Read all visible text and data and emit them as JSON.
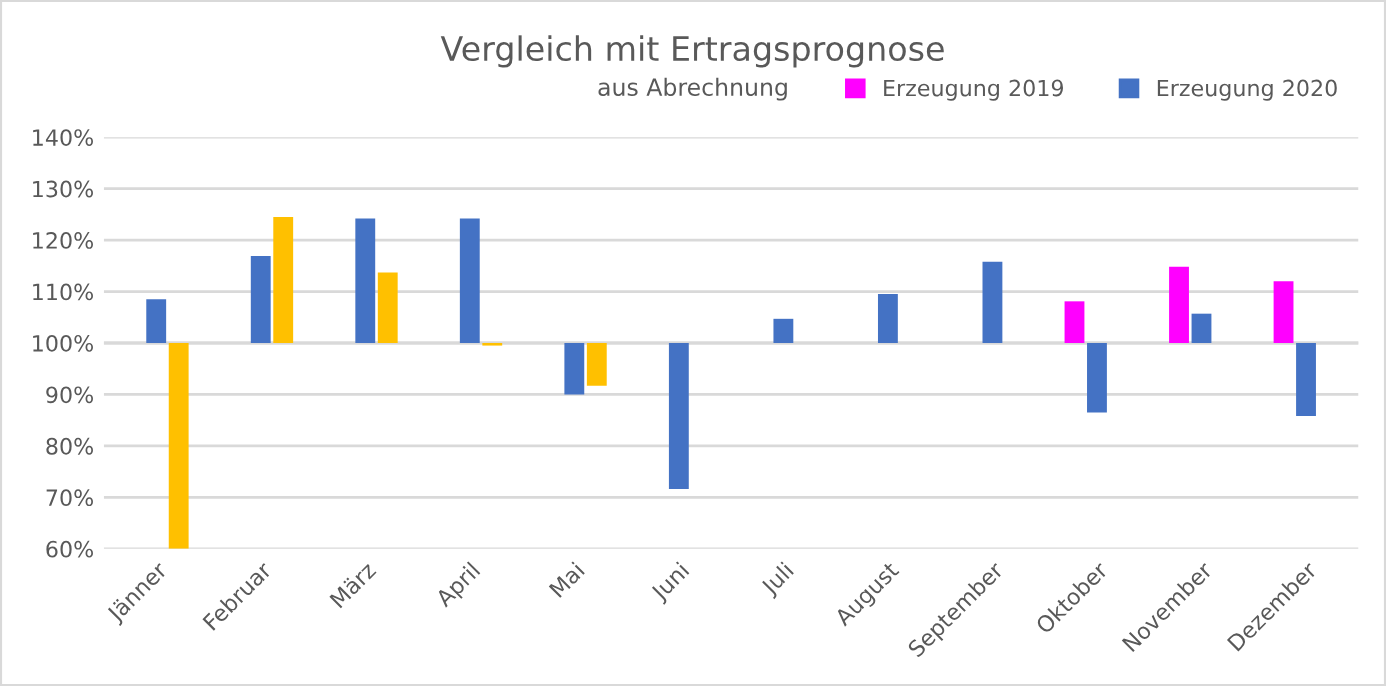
{
  "chart_data": {
    "type": "bar",
    "title": "Vergleich mit Ertragsprognose",
    "subtitle": "aus Abrechnung",
    "categories": [
      "Jänner",
      "Februar",
      "März",
      "April",
      "Mai",
      "Juni",
      "Juli",
      "August",
      "September",
      "Oktober",
      "November",
      "Dezember"
    ],
    "series": [
      {
        "name": "Erzeugung 2019",
        "color": "#ff00ff",
        "base": [
          null,
          null,
          null,
          null,
          null,
          null,
          null,
          null,
          null,
          100,
          100,
          100
        ],
        "values": [
          null,
          null,
          null,
          null,
          null,
          null,
          null,
          null,
          null,
          8.1,
          14.8,
          12.0
        ]
      },
      {
        "name": "Erzeugung 2020",
        "color": "#4472c4",
        "base": [
          100,
          100,
          100,
          100,
          100,
          100,
          100,
          100,
          100,
          100,
          100,
          100
        ],
        "values": [
          8.5,
          16.9,
          24.2,
          24.2,
          -10.0,
          -28.4,
          4.7,
          9.5,
          15.8,
          -13.5,
          5.7,
          -14.2
        ]
      },
      {
        "color": "#ffc000",
        "base": [
          100,
          100,
          100,
          100,
          100,
          null,
          null,
          null,
          null,
          null,
          null,
          null
        ],
        "values": [
          -40.0,
          24.5,
          13.7,
          -0.5,
          -8.3,
          null,
          null,
          null,
          null,
          null,
          null,
          null
        ]
      }
    ],
    "ylim": [
      60,
      140
    ],
    "yticks": [
      {
        "value": 60,
        "label": "60%"
      },
      {
        "value": 70,
        "label": "70%"
      },
      {
        "value": 80,
        "label": "80%"
      },
      {
        "value": 90,
        "label": "90%"
      },
      {
        "value": 100,
        "label": "100%"
      },
      {
        "value": 110,
        "label": "110%"
      },
      {
        "value": 120,
        "label": "120%"
      },
      {
        "value": 130,
        "label": "130%"
      },
      {
        "value": 140,
        "label": "140%"
      }
    ],
    "grid": "y",
    "legend": "top right"
  }
}
